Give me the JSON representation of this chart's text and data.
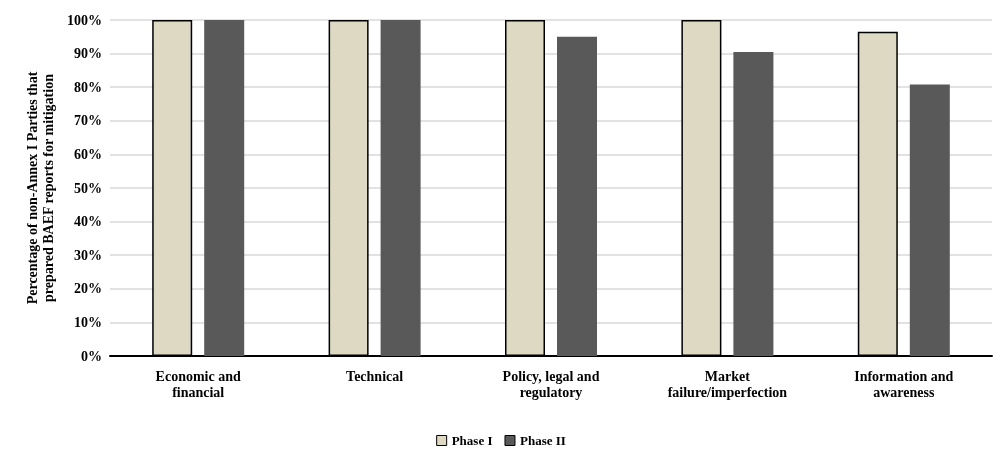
{
  "chart_data": {
    "type": "bar",
    "ylabel": "Percentage of non-Annex I Parties that prepared BAEF reports for mitigation",
    "categories": [
      "Economic and financial",
      "Technical",
      "Policy, legal and regulatory",
      "Market failure/imperfection",
      "Information and awareness"
    ],
    "series": [
      {
        "name": "Phase I",
        "color": "#ddd9c3",
        "values": [
          100,
          100,
          100,
          100,
          96.5
        ]
      },
      {
        "name": "Phase II",
        "color": "#595959",
        "values": [
          100,
          100,
          95,
          90.5,
          80.8
        ]
      }
    ],
    "ylim": [
      0,
      100
    ],
    "yticks": [
      {
        "value": 0,
        "label": "0%"
      },
      {
        "value": 10,
        "label": "10%"
      },
      {
        "value": 20,
        "label": "20%"
      },
      {
        "value": 30,
        "label": "30%"
      },
      {
        "value": 40,
        "label": "40%"
      },
      {
        "value": 50,
        "label": "50%"
      },
      {
        "value": 60,
        "label": "60%"
      },
      {
        "value": 70,
        "label": "70%"
      },
      {
        "value": 80,
        "label": "80%"
      },
      {
        "value": 90,
        "label": "90%"
      },
      {
        "value": 100,
        "label": "100%"
      }
    ],
    "grid": "y",
    "legend": "bottom"
  }
}
